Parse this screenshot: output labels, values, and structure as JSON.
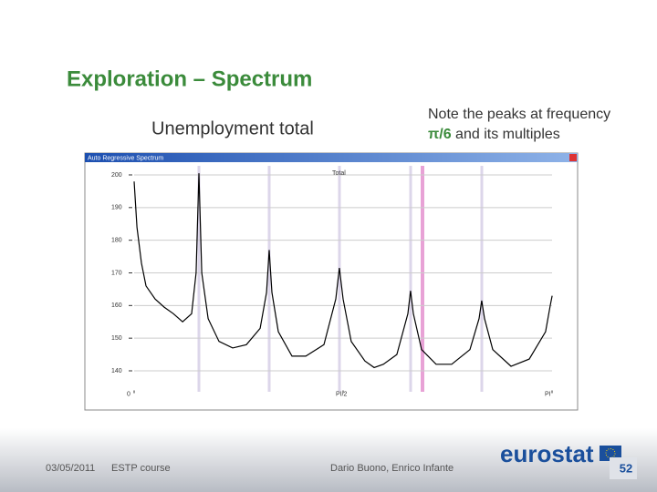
{
  "slide": {
    "title": "Exploration – Spectrum",
    "subtitle": "Unemployment total",
    "note_line1": "Note the peaks at frequency",
    "note_highlight": "π/6",
    "note_rest": "and its multiples",
    "date": "03/05/2011",
    "course": "ESTP course",
    "authors": "Dario Buono, Enrico Infante",
    "logo": "eurostat",
    "page": "52"
  },
  "chart_data": {
    "type": "line",
    "title": "Auto Regressive Spectrum",
    "x": [
      0,
      0.021,
      0.055,
      0.089,
      0.158,
      0.226,
      0.295,
      0.364,
      0.432,
      0.466,
      0.487,
      0.508,
      0.556,
      0.638,
      0.741,
      0.844,
      0.947,
      0.995,
      1.015,
      1.036,
      1.084,
      1.187,
      1.29,
      1.427,
      1.516,
      1.543,
      1.571,
      1.632,
      1.735,
      1.804,
      1.873,
      1.975,
      2.058,
      2.078,
      2.099,
      2.161,
      2.27,
      2.387,
      2.524,
      2.593,
      2.613,
      2.634,
      2.696,
      2.833,
      2.97,
      3.093,
      3.128,
      3.142
    ],
    "series": [
      {
        "name": "Total",
        "color": "#000000",
        "values": [
          198,
          184,
          173,
          166,
          162,
          159.5,
          157.5,
          155,
          157.5,
          170,
          200.5,
          170,
          156,
          149,
          147,
          148,
          153,
          164,
          177,
          164,
          152,
          144.5,
          144.5,
          148,
          162,
          171.5,
          162,
          149,
          143,
          141,
          142,
          145,
          157.5,
          164.5,
          157.5,
          146.5,
          142,
          142,
          146.5,
          156,
          161.5,
          156,
          146.5,
          141.4,
          143.6,
          152,
          160,
          163
        ]
      }
    ],
    "xlim": [
      0,
      3.1416
    ],
    "ylim": [
      134,
      201
    ],
    "xticks": [
      0,
      {
        "value": 1.5708,
        "label": "PI/2"
      },
      {
        "value": 3.1416,
        "label": "PI"
      }
    ],
    "yticks": [
      140,
      150,
      160,
      170,
      180,
      190,
      200
    ],
    "grid": true
  }
}
